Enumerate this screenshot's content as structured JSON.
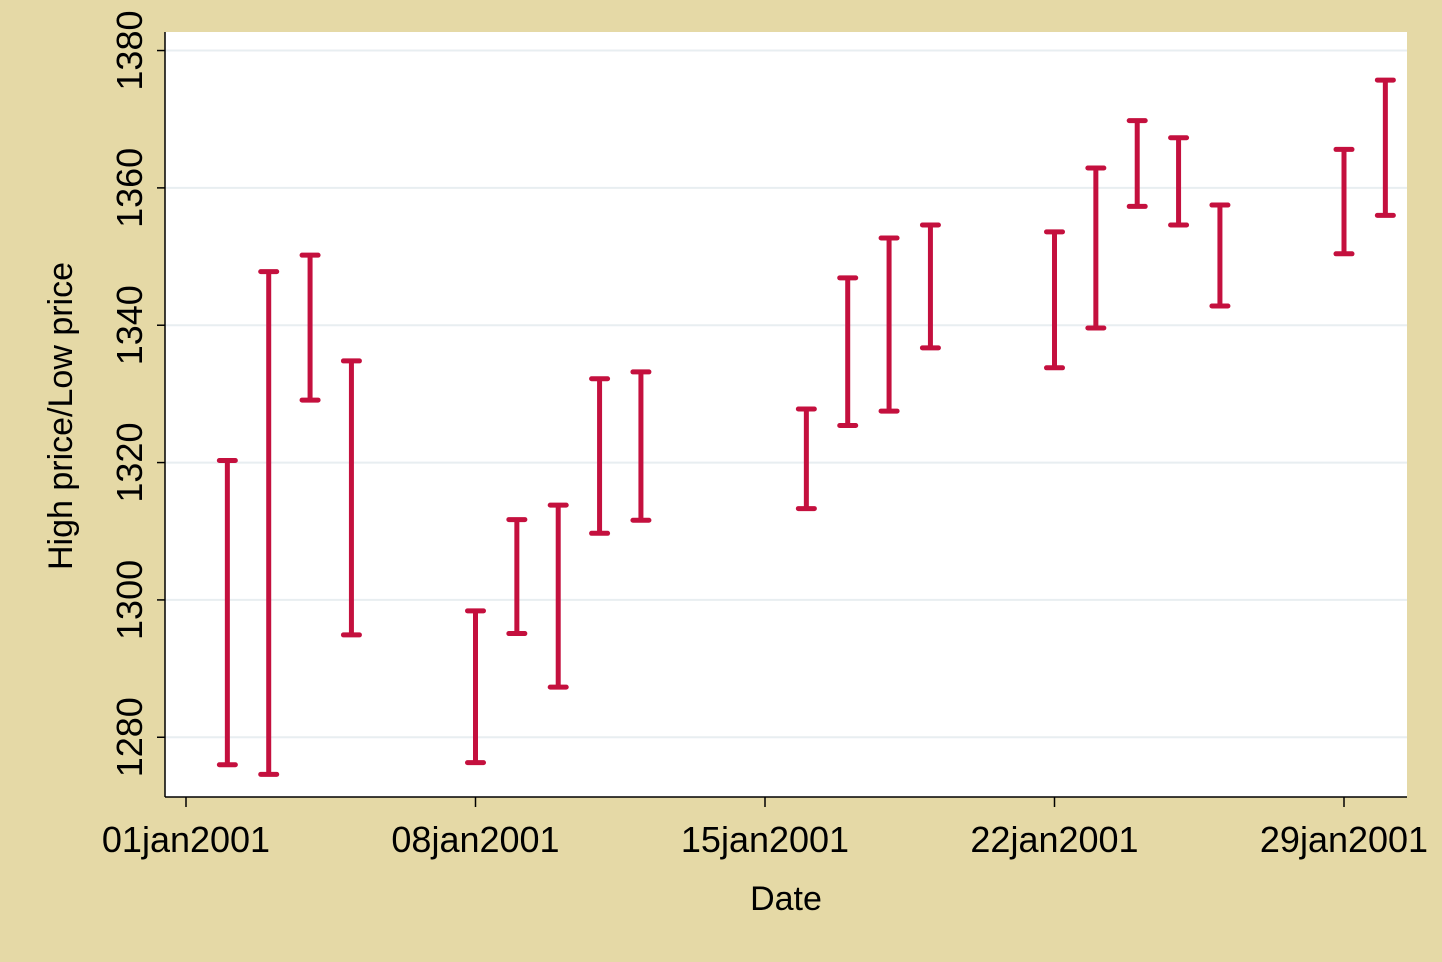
{
  "chart_data": {
    "type": "rcap",
    "title": "",
    "xlabel": "Date",
    "ylabel": "High price/Low price",
    "ylim": [
      1271.3,
      1382.7
    ],
    "yticks": [
      1280,
      1300,
      1320,
      1340,
      1360,
      1380
    ],
    "xticks": [
      "01jan2001",
      "08jan2001",
      "15jan2001",
      "22jan2001",
      "29jan2001"
    ],
    "grid": true,
    "series": [
      {
        "color": "#c4103e",
        "points": [
          {
            "date": "2001-01-02",
            "high": 1320.3,
            "low": 1276.0
          },
          {
            "date": "2001-01-03",
            "high": 1347.8,
            "low": 1274.6
          },
          {
            "date": "2001-01-04",
            "high": 1350.2,
            "low": 1329.1
          },
          {
            "date": "2001-01-05",
            "high": 1334.8,
            "low": 1294.9
          },
          {
            "date": "2001-01-08",
            "high": 1298.4,
            "low": 1276.3
          },
          {
            "date": "2001-01-09",
            "high": 1311.7,
            "low": 1295.1
          },
          {
            "date": "2001-01-10",
            "high": 1313.8,
            "low": 1287.3
          },
          {
            "date": "2001-01-11",
            "high": 1332.2,
            "low": 1309.7
          },
          {
            "date": "2001-01-12",
            "high": 1333.2,
            "low": 1311.6
          },
          {
            "date": "2001-01-16",
            "high": 1327.8,
            "low": 1313.3
          },
          {
            "date": "2001-01-17",
            "high": 1346.9,
            "low": 1325.4
          },
          {
            "date": "2001-01-18",
            "high": 1352.7,
            "low": 1327.5
          },
          {
            "date": "2001-01-19",
            "high": 1354.6,
            "low": 1336.7
          },
          {
            "date": "2001-01-22",
            "high": 1353.6,
            "low": 1333.8
          },
          {
            "date": "2001-01-23",
            "high": 1362.9,
            "low": 1339.6
          },
          {
            "date": "2001-01-24",
            "high": 1369.8,
            "low": 1357.3
          },
          {
            "date": "2001-01-25",
            "high": 1367.3,
            "low": 1354.6
          },
          {
            "date": "2001-01-26",
            "high": 1357.5,
            "low": 1342.8
          },
          {
            "date": "2001-01-29",
            "high": 1365.6,
            "low": 1350.4
          },
          {
            "date": "2001-01-30",
            "high": 1375.7,
            "low": 1356.0
          }
        ]
      }
    ]
  }
}
